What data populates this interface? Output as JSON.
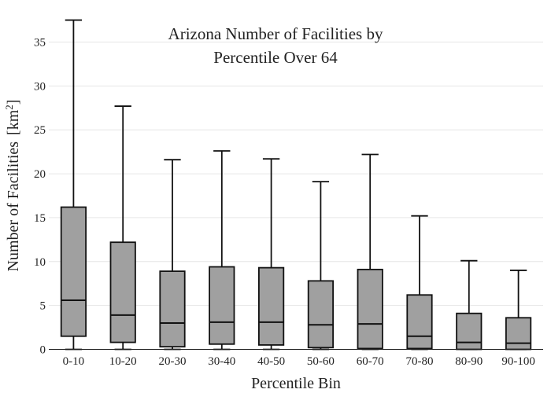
{
  "chart_data": {
    "type": "box",
    "title_lines": [
      "Arizona Number of Facilities by",
      "Percentile Over 64"
    ],
    "xlabel": "Percentile Bin",
    "ylabel_main": "Number of Facilities",
    "ylabel_unit_base": "[km",
    "ylabel_unit_sup": "2",
    "ylabel_unit_close": "]",
    "ylim": [
      0,
      38
    ],
    "yticks": [
      0,
      5,
      10,
      15,
      20,
      25,
      30,
      35
    ],
    "grid": true,
    "box_color": "#a0a0a0",
    "line_color": "#111111",
    "categories": [
      "0-10",
      "10-20",
      "20-30",
      "30-40",
      "40-50",
      "50-60",
      "60-70",
      "70-80",
      "80-90",
      "90-100"
    ],
    "boxes": [
      {
        "min": 0,
        "q1": 1.5,
        "median": 5.6,
        "q3": 16.2,
        "max": 37.5
      },
      {
        "min": 0,
        "q1": 0.8,
        "median": 3.9,
        "q3": 12.2,
        "max": 27.7
      },
      {
        "min": 0,
        "q1": 0.3,
        "median": 3.0,
        "q3": 8.9,
        "max": 21.6
      },
      {
        "min": 0,
        "q1": 0.6,
        "median": 3.1,
        "q3": 9.4,
        "max": 22.6
      },
      {
        "min": 0,
        "q1": 0.5,
        "median": 3.1,
        "q3": 9.3,
        "max": 21.7
      },
      {
        "min": 0,
        "q1": 0.2,
        "median": 2.8,
        "q3": 7.8,
        "max": 19.1
      },
      {
        "min": 0,
        "q1": 0.1,
        "median": 2.9,
        "q3": 9.1,
        "max": 22.2
      },
      {
        "min": 0,
        "q1": 0.1,
        "median": 1.5,
        "q3": 6.2,
        "max": 15.2
      },
      {
        "min": 0,
        "q1": 0.0,
        "median": 0.8,
        "q3": 4.1,
        "max": 10.1
      },
      {
        "min": 0,
        "q1": 0.0,
        "median": 0.7,
        "q3": 3.6,
        "max": 9.0
      }
    ]
  }
}
